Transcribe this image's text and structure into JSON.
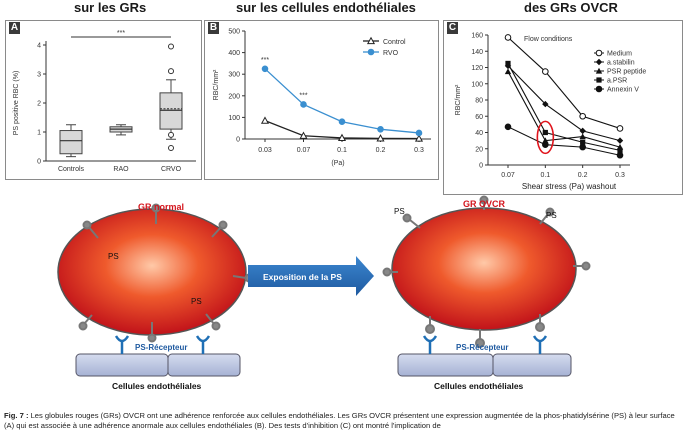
{
  "headers": {
    "left": "sur les GRs",
    "middle": "sur les cellules endothéliales",
    "right": "des GRs OVCR"
  },
  "chart_data": [
    {
      "panel": "A",
      "type": "box",
      "ylabel": "PS positive RBC (%)",
      "ylim": [
        0,
        4
      ],
      "yticks": [
        0,
        1,
        2,
        3,
        4
      ],
      "categories": [
        "Controls",
        "RAO",
        "CRVO"
      ],
      "boxes": [
        {
          "min": 0.15,
          "q1": 0.25,
          "median": 0.7,
          "q3": 1.05,
          "max": 1.25,
          "outliers": []
        },
        {
          "min": 0.9,
          "q1": 1.0,
          "median": 1.1,
          "q3": 1.18,
          "max": 1.25,
          "outliers": []
        },
        {
          "min": 0.75,
          "q1": 1.1,
          "median": 1.75,
          "mean": 1.8,
          "q3": 2.35,
          "max": 2.8,
          "outliers": [
            0.45,
            0.9,
            3.1,
            3.95
          ]
        }
      ],
      "significance": "***"
    },
    {
      "panel": "B",
      "type": "line",
      "ylabel": "RBC/mm²",
      "xlabel": "(Pa)",
      "ylim": [
        0,
        500
      ],
      "yticks": [
        0,
        100,
        200,
        300,
        400,
        500
      ],
      "categories": [
        "0.03",
        "0.07",
        "0.1",
        "0.2",
        "0.3"
      ],
      "series": [
        {
          "name": "Control",
          "values": [
            85,
            15,
            5,
            3,
            2
          ],
          "color": "#222222",
          "marker": "triangle-open"
        },
        {
          "name": "RVO",
          "values": [
            325,
            160,
            80,
            45,
            28
          ],
          "color": "#3a8fd0",
          "marker": "circle-filled"
        }
      ],
      "annotations": [
        "***",
        "***"
      ]
    },
    {
      "panel": "C",
      "type": "line",
      "ylabel": "RBC/mm²",
      "xlabel": "Shear stress (Pa) washout",
      "title": "Flow conditions",
      "ylim": [
        0,
        160
      ],
      "yticks": [
        0,
        20,
        40,
        60,
        80,
        100,
        120,
        140,
        160
      ],
      "categories": [
        "0.07",
        "0.1",
        "0.2",
        "0.3"
      ],
      "series": [
        {
          "name": "Medium",
          "values": [
            157,
            115,
            60,
            45
          ],
          "marker": "circle-open"
        },
        {
          "name": "a.stabilin",
          "values": [
            122,
            75,
            42,
            30
          ],
          "marker": "diamond"
        },
        {
          "name": "PSR peptide",
          "values": [
            115,
            30,
            35,
            22
          ],
          "marker": "triangle"
        },
        {
          "name": "a.PSR",
          "values": [
            125,
            40,
            28,
            18
          ],
          "marker": "square"
        },
        {
          "name": "Annexin V",
          "values": [
            47,
            25,
            22,
            12
          ],
          "marker": "circle-filled"
        }
      ],
      "highlight_category": "0.1"
    }
  ],
  "diagram": {
    "left_cell": "GR normal",
    "right_cell": "GR OVCR",
    "arrow": "Exposition de la PS",
    "ps_label": "PS",
    "receptor_label": "PS-Récepteur",
    "endothelial_label": "Cellules endothéliales"
  },
  "caption": {
    "prefix": "Fig. 7 :",
    "text": " Les globules rouges (GRs) OVCR ont une adhérence renforcée aux cellules endothéliales. Les GRs OVCR présentent une expression augmentée de la phos-phatidylsérine (PS) à leur surface (A) qui est associée à une adhérence anormale aux cellules endothéliales (B). Des tests d'inhibition (C) ont montré l'implication de"
  }
}
